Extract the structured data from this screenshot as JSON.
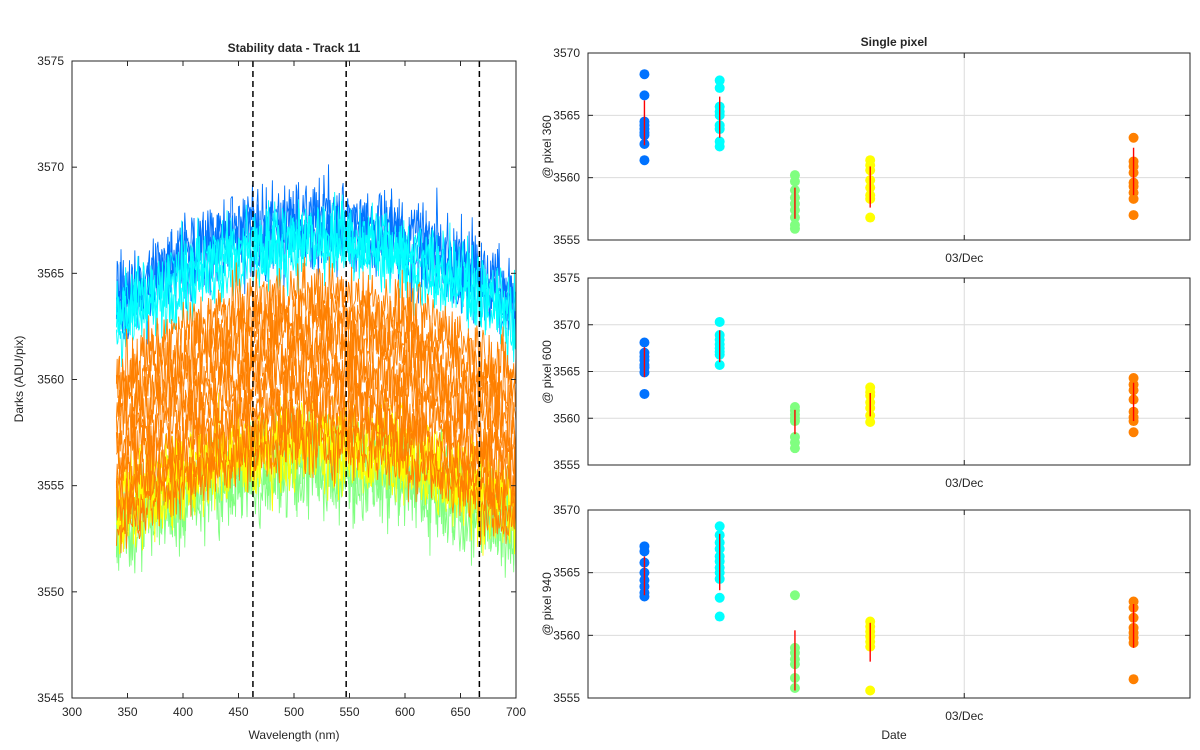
{
  "chart_data": [
    {
      "type": "line",
      "title": "Stability data - Track 11",
      "xlabel": "Wavelength (nm)",
      "ylabel": "Darks (ADU/pix)",
      "xlim": [
        300,
        700
      ],
      "ylim": [
        3545,
        3575
      ],
      "xticks": [
        300,
        350,
        400,
        450,
        500,
        550,
        600,
        650,
        700
      ],
      "yticks": [
        3545,
        3550,
        3555,
        3560,
        3565,
        3570,
        3575
      ],
      "grid": false,
      "data_x_range": [
        340,
        700
      ],
      "series": [
        {
          "color": "#0072ff",
          "mean_edge": 3563.0,
          "mean_center": 3567.3,
          "spread": 1.3
        },
        {
          "color": "#00ffff",
          "mean_edge": 3562.3,
          "mean_center": 3566.5,
          "spread": 1.2
        },
        {
          "color": "#80ff80",
          "mean_edge": 3552.5,
          "mean_center": 3556.0,
          "spread": 1.5
        },
        {
          "color": "#ffff00",
          "mean_edge": 3553.5,
          "mean_center": 3557.0,
          "spread": 1.4
        },
        {
          "color": "#ff8000",
          "mean_edge": 3556.0,
          "mean_center": 3560.5,
          "spread": 4.3
        }
      ],
      "vlines": [
        463,
        547,
        667
      ]
    },
    {
      "type": "scatter",
      "title": "Single pixel",
      "ylabel": "@ pixel 360",
      "xlabel": "",
      "ylim": [
        3555,
        3570
      ],
      "yticks": [
        3555,
        3560,
        3565,
        3570
      ],
      "xtick_label": "03/Dec",
      "grid": true,
      "groups": [
        {
          "x": 0.25,
          "color": "#0072ff",
          "values": [
            3568.3,
            3566.6,
            3564.5,
            3564.2,
            3563.9,
            3563.6,
            3563.4,
            3562.7,
            3561.4
          ],
          "errbar": [
            3562.6,
            3566.2
          ]
        },
        {
          "x": 1.25,
          "color": "#00ffff",
          "values": [
            3567.8,
            3567.2,
            3565.7,
            3565.3,
            3565.0,
            3564.2,
            3563.9,
            3562.9,
            3562.5
          ],
          "errbar": [
            3563.2,
            3566.5
          ]
        },
        {
          "x": 2.25,
          "color": "#80ff80",
          "values": [
            3560.2,
            3559.7,
            3559.0,
            3558.4,
            3557.9,
            3557.4,
            3556.8,
            3556.2,
            3555.9
          ],
          "errbar": [
            3556.7,
            3559.2
          ]
        },
        {
          "x": 3.25,
          "color": "#ffff00",
          "values": [
            3561.4,
            3561.0,
            3560.6,
            3559.8,
            3559.2,
            3558.6,
            3558.3,
            3556.8
          ],
          "errbar": [
            3557.6,
            3560.9
          ]
        },
        {
          "x": 6.75,
          "color": "#ff8000",
          "values": [
            3563.2,
            3561.3,
            3560.9,
            3560.4,
            3559.6,
            3559.3,
            3558.8,
            3558.3,
            3557.0
          ],
          "errbar": [
            3558.6,
            3562.4
          ]
        }
      ]
    },
    {
      "type": "scatter",
      "ylabel": "@ pixel 600",
      "xlabel": "",
      "ylim": [
        3555,
        3575
      ],
      "yticks": [
        3555,
        3560,
        3565,
        3570,
        3575
      ],
      "xtick_label": "03/Dec",
      "grid": true,
      "groups": [
        {
          "x": 0.25,
          "color": "#0072ff",
          "values": [
            3568.1,
            3567.0,
            3566.6,
            3566.2,
            3565.7,
            3565.4,
            3564.9,
            3562.6
          ],
          "errbar": [
            3564.4,
            3567.6
          ]
        },
        {
          "x": 1.25,
          "color": "#00ffff",
          "values": [
            3570.3,
            3568.9,
            3568.4,
            3567.9,
            3567.5,
            3567.1,
            3566.8,
            3565.7
          ],
          "errbar": [
            3566.0,
            3569.4
          ]
        },
        {
          "x": 2.25,
          "color": "#80ff80",
          "values": [
            3561.2,
            3560.8,
            3560.4,
            3560.0,
            3559.7,
            3558.0,
            3557.4,
            3556.8
          ],
          "errbar": [
            3558.3,
            3560.9
          ]
        },
        {
          "x": 3.25,
          "color": "#ffff00",
          "values": [
            3563.3,
            3562.8,
            3562.4,
            3561.7,
            3561.1,
            3560.3,
            3559.6
          ],
          "errbar": [
            3560.2,
            3562.7
          ]
        },
        {
          "x": 6.75,
          "color": "#ff8000",
          "values": [
            3564.3,
            3563.6,
            3563.0,
            3562.0,
            3560.7,
            3560.1,
            3559.7,
            3558.5
          ],
          "errbar": [
            3559.7,
            3563.8
          ]
        }
      ]
    },
    {
      "type": "scatter",
      "ylabel": "@ pixel 940",
      "xlabel": "Date",
      "ylim": [
        3555,
        3570
      ],
      "yticks": [
        3555,
        3560,
        3565,
        3570
      ],
      "xtick_label": "03/Dec",
      "grid": true,
      "groups": [
        {
          "x": 0.25,
          "color": "#0072ff",
          "values": [
            3567.1,
            3566.7,
            3565.8,
            3565.0,
            3564.4,
            3563.9,
            3563.4,
            3563.1
          ],
          "errbar": [
            3563.2,
            3566.3
          ]
        },
        {
          "x": 1.25,
          "color": "#00ffff",
          "values": [
            3568.7,
            3568.0,
            3567.4,
            3566.9,
            3566.3,
            3565.9,
            3565.4,
            3565.0,
            3564.5,
            3563.0,
            3561.5
          ],
          "errbar": [
            3563.6,
            3568.1
          ]
        },
        {
          "x": 2.25,
          "color": "#80ff80",
          "values": [
            3563.2,
            3559.0,
            3558.6,
            3558.1,
            3557.7,
            3556.6,
            3555.8
          ],
          "errbar": [
            3555.6,
            3560.4
          ]
        },
        {
          "x": 3.25,
          "color": "#ffff00",
          "values": [
            3561.1,
            3560.7,
            3560.3,
            3559.9,
            3559.5,
            3559.1,
            3555.6
          ],
          "errbar": [
            3557.9,
            3561.0
          ]
        },
        {
          "x": 6.75,
          "color": "#ff8000",
          "values": [
            3562.7,
            3562.2,
            3561.4,
            3560.6,
            3560.2,
            3559.8,
            3559.4,
            3556.5
          ],
          "errbar": [
            3559.0,
            3562.5
          ]
        }
      ]
    }
  ],
  "errbar_color": "#ff0000",
  "vline_color": "#000000",
  "scatter_xlim": [
    -0.5,
    7.5
  ],
  "scatter_xtick_pos": 4.5
}
